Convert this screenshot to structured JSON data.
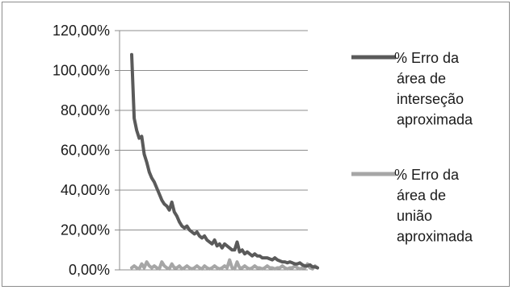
{
  "chart_data": {
    "type": "line",
    "title": "",
    "xlabel": "",
    "ylabel": "",
    "yticks": [
      "0,00%",
      "20,00%",
      "40,00%",
      "60,00%",
      "80,00%",
      "100,00%",
      "120,00%"
    ],
    "ylim": [
      0,
      120
    ],
    "legend_position": "right",
    "grid": true,
    "series": [
      {
        "name": "% Erro da área de interseção aproximada",
        "legend_lines": [
          "% Erro da",
          "área de",
          "interseção",
          "aproximada"
        ],
        "color": "#5a5a5a",
        "values": [
          108,
          76,
          70,
          66,
          67,
          58,
          54,
          49,
          46,
          44,
          41,
          38,
          35,
          33,
          32,
          30,
          34,
          29,
          27,
          24,
          22,
          21,
          22,
          20,
          19,
          18,
          19,
          17,
          16,
          17,
          15,
          14,
          13,
          15,
          12,
          13,
          11,
          13,
          12,
          11,
          10,
          10,
          14,
          9,
          10,
          8,
          9,
          8,
          7,
          8,
          7,
          7,
          6,
          6,
          6,
          5.5,
          5,
          6,
          5,
          4.5,
          4,
          4,
          3.5,
          4,
          3.5,
          3,
          3,
          3.5,
          2.5,
          2,
          2,
          2.5,
          1.5,
          1.5,
          1
        ]
      },
      {
        "name": "% Erro da área de união aproximada",
        "legend_lines": [
          "% Erro da",
          "área de",
          "união",
          "aproximada"
        ],
        "color": "#a6a6a6",
        "values": [
          1,
          2,
          1,
          0.5,
          3,
          1,
          4,
          2,
          1,
          2,
          1,
          0.5,
          4,
          2,
          1,
          0.5,
          3,
          1,
          1,
          2,
          0.5,
          1,
          2,
          1,
          0.5,
          1,
          2,
          1,
          0.5,
          2,
          1,
          0.5,
          1,
          2,
          1,
          0.5,
          1,
          2,
          1,
          5,
          1,
          0.5,
          4,
          1,
          1,
          2,
          1,
          0.5,
          1,
          2,
          1,
          1,
          0.5,
          1,
          2,
          1,
          1,
          0.5,
          1,
          1,
          2,
          1,
          0.5,
          1,
          1,
          2,
          1,
          0.5,
          1,
          1,
          3,
          1,
          0.5,
          2,
          1
        ]
      }
    ]
  }
}
